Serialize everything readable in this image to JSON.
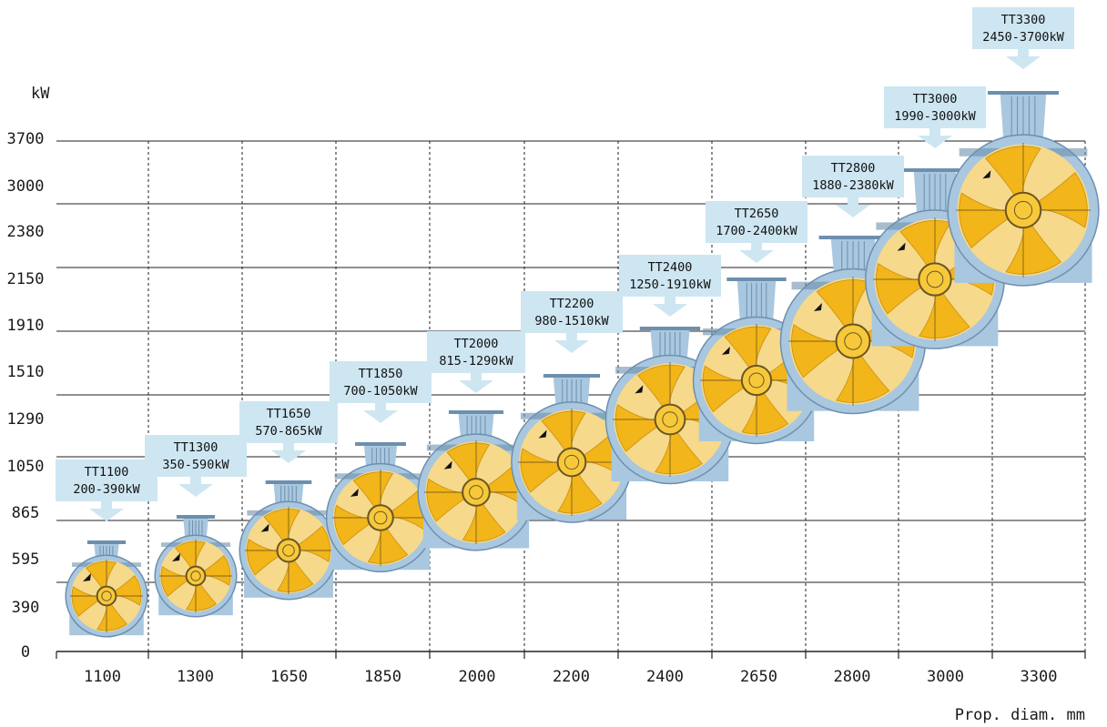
{
  "colors": {
    "grid": "#222222",
    "callout": "#cde6f2",
    "housing": "#a9c7df",
    "housing_dark": "#6d8fae",
    "blade_light": "#f6d98a",
    "blade_dark": "#f2b51a",
    "hub": "#f7c93a"
  },
  "chart_data": {
    "type": "scatter",
    "title": "",
    "ylabel": "kW",
    "xlabel": "Prop. diam. mm",
    "y_ticks": [
      "0",
      "390",
      "595",
      "865",
      "1050",
      "1290",
      "1510",
      "1910",
      "2150",
      "2380",
      "3000",
      "3700"
    ],
    "x_ticks": [
      "1100",
      "1300",
      "1650",
      "1850",
      "2000",
      "2200",
      "2400",
      "2650",
      "2800",
      "3000",
      "3300"
    ],
    "grid": {
      "horizontal": "solid",
      "vertical": "dashed"
    },
    "series": [
      {
        "points": [
          {
            "diameter_mm": 1100,
            "model": "TT1100",
            "range": "200-390kW",
            "min_kw": 200,
            "max_kw": 390
          },
          {
            "diameter_mm": 1300,
            "model": "TT1300",
            "range": "350-590kW",
            "min_kw": 350,
            "max_kw": 590
          },
          {
            "diameter_mm": 1650,
            "model": "TT1650",
            "range": "570-865kW",
            "min_kw": 570,
            "max_kw": 865
          },
          {
            "diameter_mm": 1850,
            "model": "TT1850",
            "range": "700-1050kW",
            "min_kw": 700,
            "max_kw": 1050
          },
          {
            "diameter_mm": 2000,
            "model": "TT2000",
            "range": "815-1290kW",
            "min_kw": 815,
            "max_kw": 1290
          },
          {
            "diameter_mm": 2200,
            "model": "TT2200",
            "range": "980-1510kW",
            "min_kw": 980,
            "max_kw": 1510
          },
          {
            "diameter_mm": 2400,
            "model": "TT2400",
            "range": "1250-1910kW",
            "min_kw": 1250,
            "max_kw": 1910
          },
          {
            "diameter_mm": 2650,
            "model": "TT2650",
            "range": "1700-2400kW",
            "min_kw": 1700,
            "max_kw": 2400
          },
          {
            "diameter_mm": 2800,
            "model": "TT2800",
            "range": "1880-2380kW",
            "min_kw": 1880,
            "max_kw": 2380
          },
          {
            "diameter_mm": 3000,
            "model": "TT3000",
            "range": "1990-3000kW",
            "min_kw": 1990,
            "max_kw": 3000
          },
          {
            "diameter_mm": 3300,
            "model": "TT3300",
            "range": "2450-3700kW",
            "min_kw": 2450,
            "max_kw": 3700
          }
        ]
      }
    ]
  }
}
